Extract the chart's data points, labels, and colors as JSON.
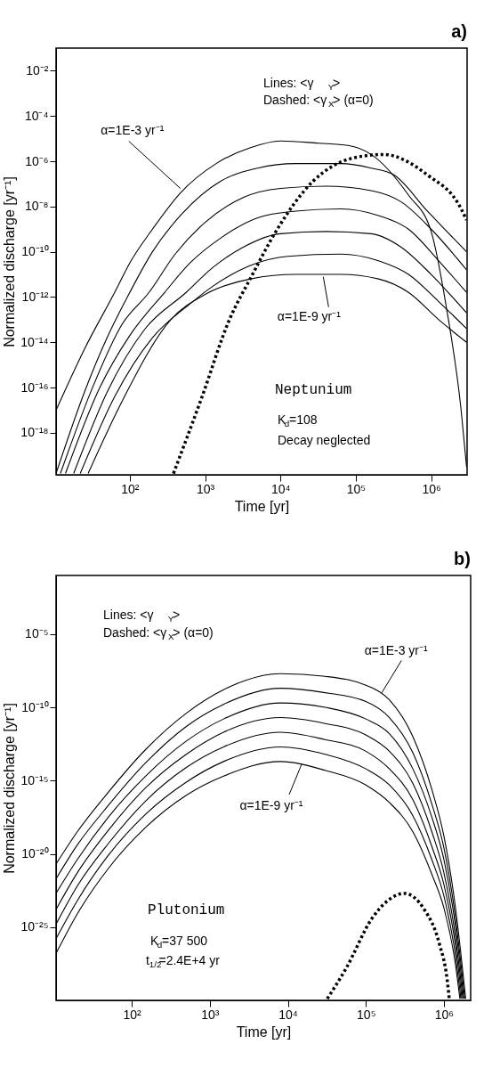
{
  "chart_data": [
    {
      "type": "line",
      "title": "a)",
      "xlabel": "Time [yr]",
      "ylabel": "Normalized  discharge [yr⁻¹]",
      "log": "xy",
      "grid": false,
      "xlim": [
        10.5,
        3000000
      ],
      "ylim": [
        1.4e-20,
        0.1
      ],
      "xticks": [
        {
          "value": 100,
          "label": "10²"
        },
        {
          "value": 1000,
          "label": "10³"
        },
        {
          "value": 10000,
          "label": "10⁴"
        },
        {
          "value": 100000,
          "label": "10⁵"
        },
        {
          "value": 1000000,
          "label": "10⁶"
        }
      ],
      "yticks": [
        {
          "value": 0.01,
          "label": "10⁻²"
        },
        {
          "value": 0.0001,
          "label": "10⁻⁴"
        },
        {
          "value": 1e-06,
          "label": "10⁻⁶"
        },
        {
          "value": 1e-08,
          "label": "10⁻⁸"
        },
        {
          "value": 1e-10,
          "label": "10⁻¹⁰"
        },
        {
          "value": 1e-12,
          "label": "10⁻¹²"
        },
        {
          "value": 1e-14,
          "label": "10⁻¹⁴"
        },
        {
          "value": 1e-16,
          "label": "10⁻¹⁶"
        },
        {
          "value": 1e-18,
          "label": "10⁻¹⁸"
        }
      ],
      "series": [
        {
          "color": "#000000",
          "line_style": "solid",
          "x": [
            10.5,
            25,
            63,
            100,
            200,
            470,
            1400,
            4000,
            10000,
            32000,
            79000,
            160000,
            500000,
            1000000,
            1600000,
            2500000,
            2950000
          ],
          "values": [
            1e-17,
            5e-15,
            1.6e-12,
            3.2e-11,
            1e-09,
            4e-08,
            7.9e-07,
            4e-06,
            7.9e-06,
            6.3e-06,
            5e-06,
            2e-06,
            3.2e-08,
            7.9e-10,
            3.2e-13,
            1e-17,
            3.2e-20
          ]
        },
        {
          "color": "#000000",
          "line_style": "solid",
          "x": [
            10.5,
            25,
            50,
            100,
            200,
            500,
            1600,
            5000,
            16000,
            63000,
            160000,
            320000,
            890000,
            2950000
          ],
          "values": [
            1.6e-20,
            6.3e-17,
            1.6e-14,
            1.6e-12,
            1e-10,
            5e-09,
            1.3e-07,
            5e-07,
            7.9e-07,
            7.9e-07,
            5e-07,
            2.5e-07,
            6.3e-09,
            1e-10
          ]
        },
        {
          "color": "#000000",
          "line_style": "solid",
          "x": [
            12,
            32,
            79,
            180,
            400,
            1000,
            3200,
            10000,
            40000,
            160000,
            400000,
            1000000,
            2950000
          ],
          "values": [
            1.6e-20,
            1e-16,
            6.3e-14,
            1.6e-12,
            7.9e-11,
            2e-09,
            2.5e-08,
            6.3e-08,
            7.9e-08,
            5e-08,
            1.6e-08,
            1e-09,
            1.6e-11
          ]
        },
        {
          "color": "#000000",
          "line_style": "solid",
          "x": [
            14,
            40,
            100,
            290,
            630,
            1600,
            5000,
            16000,
            63000,
            200000,
            500000,
            1260000,
            2950000
          ],
          "values": [
            1.6e-20,
            1e-16,
            2e-14,
            1.6e-12,
            3.2e-11,
            4e-10,
            3.2e-09,
            6.3e-09,
            7.9e-09,
            4e-09,
            1e-09,
            4e-11,
            1.6e-12
          ]
        },
        {
          "color": "#000000",
          "line_style": "solid",
          "x": [
            18,
            50,
            160,
            560,
            1260,
            3200,
            10000,
            40000,
            160000,
            400000,
            1000000,
            2950000
          ],
          "values": [
            1.6e-20,
            6.3e-17,
            4e-14,
            1.6e-12,
            2e-11,
            1.6e-10,
            6.3e-10,
            7.9e-10,
            6.3e-10,
            1.6e-10,
            1e-11,
            2e-13
          ]
        },
        {
          "color": "#000000",
          "line_style": "solid",
          "x": [
            22,
            63,
            200,
            630,
            1300,
            4000,
            12600,
            63000,
            200000,
            500000,
            1260000,
            2950000
          ],
          "values": [
            1.6e-20,
            4e-17,
            1.6e-14,
            5e-13,
            3.2e-12,
            2.5e-11,
            6.3e-11,
            7.9e-11,
            4e-11,
            1e-11,
            6.3e-13,
            4e-14
          ]
        },
        {
          "color": "#000000",
          "line_style": "solid",
          "x": [
            28,
            79,
            350,
            1000,
            4000,
            16000,
            63000,
            200000,
            500000,
            1260000,
            2950000
          ],
          "values": [
            1.6e-20,
            2.5e-17,
            1e-13,
            1.3e-12,
            6.3e-12,
            1e-11,
            1e-11,
            6.3e-12,
            1.6e-12,
            1e-13,
            1e-14
          ]
        },
        {
          "color": "#000000",
          "line_style": "dotted",
          "x": [
            380,
            890,
            2100,
            4100,
            8700,
            27000,
            85000,
            230000,
            890000,
            2500000,
            2950000
          ],
          "values": [
            1.6e-20,
            3.2e-17,
            1e-13,
            7.9e-12,
            7.9e-10,
            1.3e-07,
            1.3e-06,
            2e-06,
            2.5e-07,
            7.9e-09,
            2.5e-09
          ]
        }
      ],
      "annotations": [
        {
          "text": "α=1E-3 yr⁻¹",
          "x": 470,
          "y": 6.3e-08
        },
        "Lines:     <γ$_{Y}$>",
        "Dashed:  <γ$_{X}$> (α=0)",
        {
          "text": "α=1E-9 yr⁻¹",
          "x": 37000,
          "y": 7.9e-12
        },
        "Neptunium",
        "K$_{d}$=108",
        "Decay neglected"
      ]
    },
    {
      "type": "line",
      "title": "b)",
      "xlabel": "Time [yr]",
      "ylabel": "Normalized  discharge [yr⁻¹]",
      "log": "xy",
      "grid": false,
      "xlim": [
        10.7,
        2200000
      ],
      "ylim": [
        1e-30,
        0.1
      ],
      "xticks": [
        {
          "value": 100,
          "label": "10²"
        },
        {
          "value": 1000,
          "label": "10³"
        },
        {
          "value": 10000,
          "label": "10⁴"
        },
        {
          "value": 100000,
          "label": "10⁵"
        },
        {
          "value": 1000000,
          "label": "10⁶"
        }
      ],
      "yticks": [
        {
          "value": 1e-05,
          "label": "10⁻⁵"
        },
        {
          "value": 1e-10,
          "label": "10⁻¹⁰"
        },
        {
          "value": 1e-15,
          "label": "10⁻¹⁵"
        },
        {
          "value": 1e-20,
          "label": "10⁻²⁰"
        },
        {
          "value": 1e-25,
          "label": "10⁻²⁵"
        }
      ],
      "series": [
        {
          "color": "#000000",
          "line_style": "solid",
          "x": [
            10.7,
            20,
            50,
            150,
            500,
            1500,
            8000,
            30000,
            100000,
            200000,
            400000,
            700000,
            1000000,
            1400000,
            1900000
          ],
          "values": [
            2e-21,
            3.2e-19,
            1.6e-16,
            1.3e-13,
            4e-11,
            1.6e-09,
            2e-08,
            1.3e-08,
            3.2e-09,
            3.2e-10,
            1e-12,
            2.5e-16,
            1.6e-19,
            2.5e-24,
            1.3e-30
          ]
        },
        {
          "color": "#000000",
          "line_style": "solid",
          "x": [
            10.7,
            20,
            50,
            150,
            500,
            1500,
            8000,
            30000,
            100000,
            200000,
            400000,
            700000,
            1000000,
            1400000,
            1850000
          ],
          "values": [
            2e-22,
            4e-20,
            2e-17,
            1.6e-14,
            5e-12,
            1.6e-10,
            2e-09,
            1e-09,
            2.5e-10,
            2e-11,
            7.9e-14,
            2.5e-17,
            2.5e-20,
            5e-25,
            1.3e-30
          ]
        },
        {
          "color": "#000000",
          "line_style": "solid",
          "x": [
            10.7,
            20,
            50,
            150,
            500,
            1500,
            8000,
            30000,
            100000,
            200000,
            400000,
            700000,
            1000000,
            1400000,
            1800000
          ],
          "values": [
            2e-23,
            4e-21,
            3.2e-18,
            2e-15,
            5e-13,
            1.6e-11,
            2e-10,
            1e-10,
            1.6e-11,
            1.6e-12,
            6.3e-15,
            3.2e-18,
            4e-21,
            1.3e-25,
            1.3e-30
          ]
        },
        {
          "color": "#000000",
          "line_style": "solid",
          "x": [
            10.7,
            20,
            50,
            150,
            500,
            1500,
            8000,
            30000,
            100000,
            200000,
            400000,
            700000,
            1000000,
            1400000,
            1750000
          ],
          "values": [
            1.6e-24,
            5e-22,
            4e-19,
            3.2e-16,
            6.3e-14,
            2e-12,
            2e-11,
            7.9e-12,
            1.3e-12,
            1e-13,
            6.3e-16,
            3.2e-19,
            5e-22,
            2.5e-26,
            1.3e-30
          ]
        },
        {
          "color": "#000000",
          "line_style": "solid",
          "x": [
            10.7,
            20,
            50,
            150,
            500,
            1500,
            8000,
            30000,
            100000,
            200000,
            400000,
            700000,
            1000000,
            1400000,
            1700000
          ],
          "values": [
            1.6e-25,
            6.3e-23,
            5e-20,
            4e-17,
            7.9e-15,
            2e-13,
            2e-12,
            6.3e-13,
            1e-13,
            6.3e-15,
            5e-17,
            3.2e-20,
            7.9e-23,
            6.3e-27,
            1.3e-30
          ]
        },
        {
          "color": "#000000",
          "line_style": "solid",
          "x": [
            10.7,
            20,
            50,
            150,
            500,
            1500,
            8000,
            30000,
            100000,
            200000,
            400000,
            700000,
            1000000,
            1400000,
            1650000
          ],
          "values": [
            1.6e-26,
            6.3e-24,
            7.9e-21,
            5e-18,
            7.9e-16,
            2e-14,
            2e-13,
            6.3e-14,
            6.3e-15,
            5e-16,
            4e-18,
            4e-21,
            1.3e-23,
            1.3e-27,
            1.3e-30
          ]
        },
        {
          "color": "#000000",
          "line_style": "solid",
          "x": [
            10.7,
            20,
            50,
            150,
            500,
            1500,
            8000,
            30000,
            100000,
            200000,
            400000,
            700000,
            1000000,
            1400000,
            1600000
          ],
          "values": [
            1.6e-27,
            7.9e-25,
            1e-21,
            6.3e-19,
            1e-16,
            2e-15,
            2e-14,
            5e-15,
            5e-16,
            3.2e-17,
            3.2e-19,
            4e-22,
            2e-24,
            3.2e-28,
            1.3e-30
          ]
        },
        {
          "color": "#000000",
          "line_style": "dotted",
          "x": [
            32000,
            56000,
            120000,
            190000,
            310000,
            560000,
            870000,
            1100000,
            1170000
          ],
          "values": [
            1.3e-30,
            1.6e-28,
            4e-25,
            6.3e-24,
            2e-23,
            1.6e-24,
            7.9e-27,
            2.5e-29,
            1.3e-30
          ]
        }
      ],
      "annotations": [
        "Lines:     <γ$_{Y}$>",
        "Dashed:  <γ$_{X}$> (α=0)",
        {
          "text": "α=1E-3 yr⁻¹",
          "x": 160000,
          "y": 1e-09
        },
        {
          "text": "α=1E-9 yr⁻¹",
          "x": 15000,
          "y": 1.3e-14
        },
        "Plutonium",
        "K$_{d}$=37 500",
        "t$_{1/2}$=2.4E+4 yr"
      ]
    }
  ]
}
